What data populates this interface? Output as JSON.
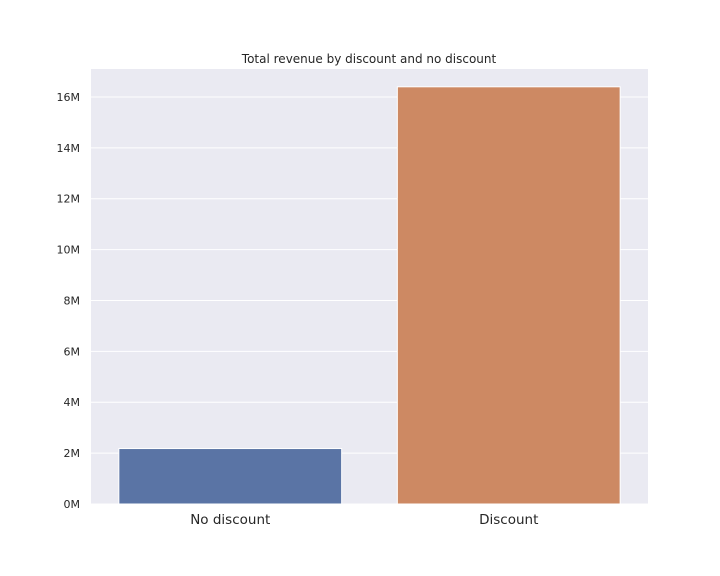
{
  "chart_data": {
    "type": "bar",
    "title": "Total revenue by discount and no discount",
    "xlabel": "",
    "ylabel": "",
    "categories": [
      "No discount",
      "Discount"
    ],
    "values": [
      2180000,
      16400000
    ],
    "ylim": [
      0,
      17100000
    ],
    "yticks": [
      0,
      2000000,
      4000000,
      6000000,
      8000000,
      10000000,
      12000000,
      14000000,
      16000000
    ],
    "ytick_labels": [
      "0M",
      "2M",
      "4M",
      "6M",
      "8M",
      "10M",
      "12M",
      "14M",
      "16M"
    ],
    "grid": true,
    "legend": "none",
    "colors": [
      "#5a74a5",
      "#cd8963"
    ],
    "background": "#eaeaf2"
  }
}
